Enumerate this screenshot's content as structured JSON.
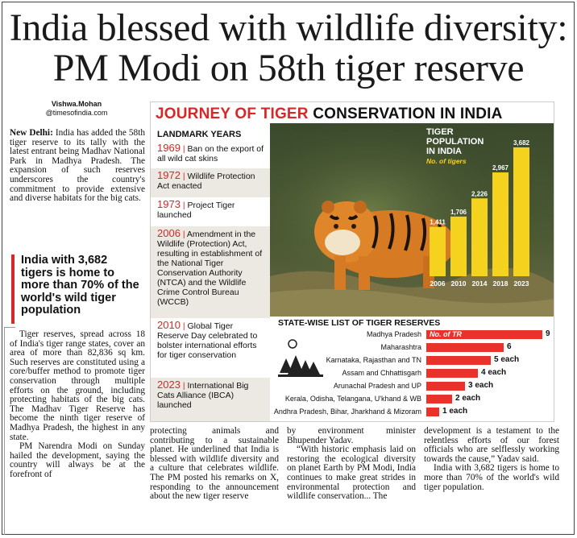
{
  "headline": {
    "line1": "India blessed with wildlife diversity:",
    "line2": "PM Modi on 58th tiger reserve"
  },
  "byline": {
    "name": "Vishwa.Mohan",
    "handle": "@timesofindia.com"
  },
  "article": {
    "dateline": "New Delhi:",
    "p1": " India has added the 58th tiger reserve to its tally with the latest entrant being Madhav National Park in Madhya Pradesh. The expansion of such reserves underscores the country's commitment to provide extensive and diverse habitats for the big cats.",
    "pullquote": "India with 3,682 tigers is home to more than 70% of the world's wild tiger population",
    "p2": "Tiger reserves, spread across 18 of India's tiger range states, cover an area of more than 82,836 sq km. Such reserves are constituted using a core/buffer method to promote tiger conservation through multiple efforts on the ground, including protecting habitats of the big cats. The Madhav Tiger Reserve has become the ninth tiger reserve of Madhya Pradesh, the highest in any state.",
    "p3": "PM Narendra Modi on Sunday hailed the development, saying the country will always be at the forefront of",
    "col2": "protecting animals and contributing to a sustainable planet. He underlined that India is blessed with wildlife diversity and a culture that celebrates wildlife. The PM posted his remarks on X, responding to the announcement about the new tiger reserve",
    "col3a": "by environment minister Bhupender Yadav.",
    "col3b": "“With historic emphasis laid on restoring the ecological diversity on planet Earth by PM Modi, India continues to make great strides in environmental protection and wildlife conservation... The",
    "col4a": "development is a testament to the relentless efforts of our forest officials who are selflessly working towards the cause,” Yadav said.",
    "col4b": "India with 3,682 tigers is home to more than 70% of the world's wild tiger population."
  },
  "graphic": {
    "title_red": "JOURNEY OF TIGER",
    "title_black": " CONSERVATION IN INDIA",
    "landmark_heading": "LANDMARK YEARS",
    "landmarks": [
      {
        "year": "1969",
        "text": "Ban on the export of all wild cat skins"
      },
      {
        "year": "1972",
        "text": "Wildlife Protection Act enacted"
      },
      {
        "year": "1973",
        "text": "Project Tiger launched"
      },
      {
        "year": "2006",
        "text": "Amendment in the Wildlife (Protection) Act, resulting in establishment of the National Tiger Conservation Authority (NTCA) and the Wildlife Crime Control Bureau (WCCB)"
      },
      {
        "year": "2010",
        "text": "Global Tiger Reserve Day celebrated to bolster international efforts for tiger conservation"
      },
      {
        "year": "2023",
        "text": "International Big Cats Alliance (IBCA) launched"
      }
    ],
    "states_heading": "STATE-WISE LIST OF TIGER RESERVES",
    "states_bar_label": "No. of TR"
  },
  "chart_data": [
    {
      "type": "bar",
      "title": "TIGER POPULATION IN INDIA",
      "ylabel": "No. of tigers",
      "categories": [
        "2006",
        "2010",
        "2014",
        "2018",
        "2023"
      ],
      "values": [
        1411,
        1706,
        2226,
        2967,
        3682
      ],
      "value_labels": [
        "1,411",
        "1,706",
        "2,226",
        "2,967",
        "3,682"
      ],
      "ylim": [
        0,
        3682
      ],
      "color": "#f5d21e"
    },
    {
      "type": "bar",
      "orientation": "horizontal",
      "title": "STATE-WISE LIST OF TIGER RESERVES",
      "categories": [
        "Madhya Pradesh",
        "Maharashtra",
        "Karnataka, Rajasthan and TN",
        "Assam and Chhattisgarh",
        "Arunachal Pradesh and UP",
        "Kerala, Odisha, Telangana, U'khand & WB",
        "Andhra Pradesh, Bihar, Jharkhand & Mizoram"
      ],
      "values": [
        9,
        6,
        5,
        4,
        3,
        2,
        1
      ],
      "value_labels": [
        "9",
        "6",
        "5 each",
        "4 each",
        "3 each",
        "2 each",
        "1 each"
      ],
      "color": "#e8322b"
    }
  ]
}
